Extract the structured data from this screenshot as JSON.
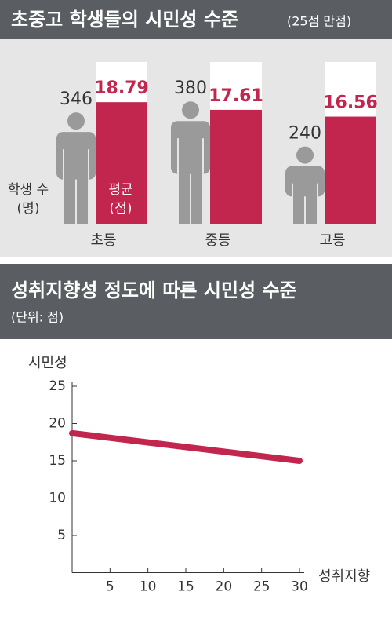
{
  "chart_data": [
    {
      "type": "bar",
      "title": "초중고 학생들의 시민성 수준",
      "subtitle": "(25점 만점)",
      "categories": [
        "초등",
        "중등",
        "고등"
      ],
      "series": [
        {
          "name": "학생 수 (명)",
          "color": "#9a9a9a",
          "values": [
            346,
            380,
            240
          ]
        },
        {
          "name": "평균 (점)",
          "color": "#c2264f",
          "values": [
            18.79,
            17.61,
            16.56
          ]
        }
      ],
      "ylim": [
        0,
        25
      ]
    },
    {
      "type": "line",
      "title": "성취지향성 정도에 따른 시민성 수준",
      "subtitle": "(단위: 점)",
      "y_label": "시민성",
      "x_label": "성취지향",
      "x": [
        0,
        30
      ],
      "series": [
        {
          "color": "#c2264f",
          "values": [
            18.7,
            15.0
          ]
        }
      ],
      "xlim": [
        0,
        30
      ],
      "ylim": [
        0,
        25
      ],
      "xticks": [
        5,
        10,
        15,
        20,
        25,
        30
      ],
      "yticks": [
        5,
        10,
        15,
        20,
        25
      ]
    }
  ]
}
